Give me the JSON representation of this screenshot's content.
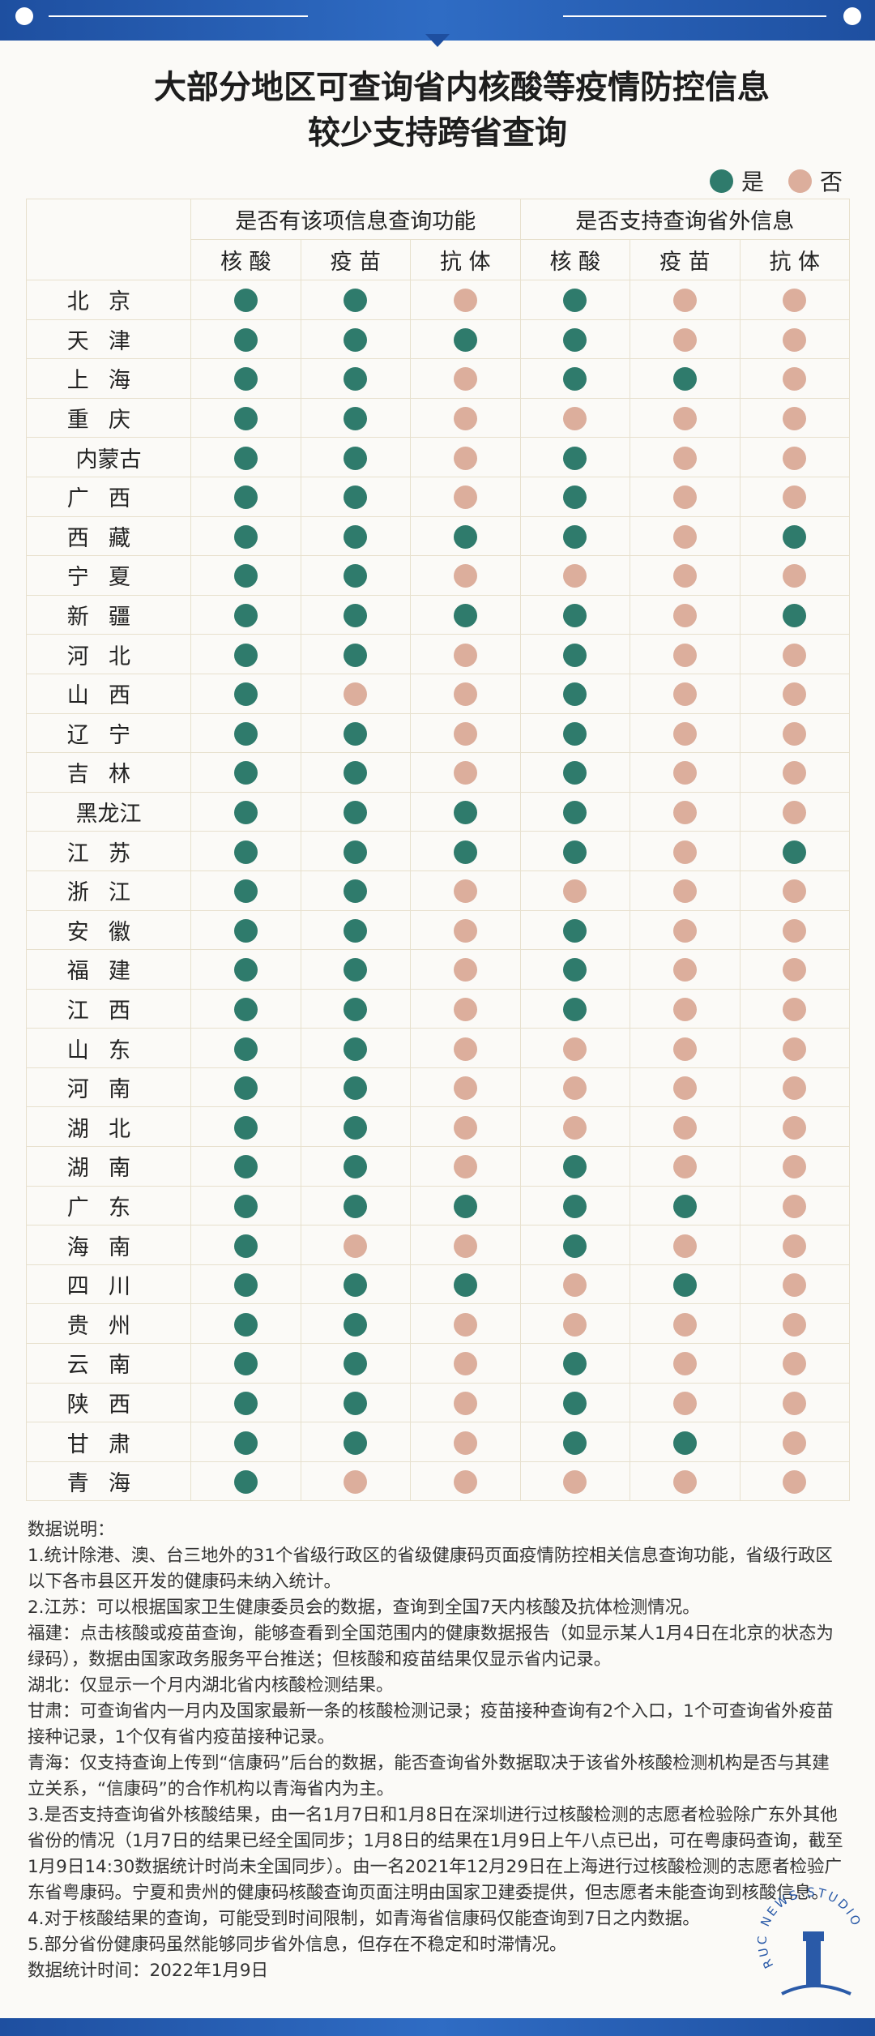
{
  "header": {
    "title_lines": [
      "大部分地区可查询省内核酸等疫情防控信息",
      "较少支持跨省查询"
    ]
  },
  "legend": {
    "yes": "是",
    "no": "否"
  },
  "table": {
    "group_headers": [
      "是否有该项信息查询功能",
      "是否支持查询省外信息"
    ],
    "sub_headers": [
      "核 酸",
      "疫 苗",
      "抗 体",
      "核 酸",
      "疫 苗",
      "抗 体"
    ],
    "rows": [
      {
        "province": "北京",
        "values": [
          true,
          true,
          false,
          true,
          false,
          false
        ]
      },
      {
        "province": "天津",
        "values": [
          true,
          true,
          true,
          true,
          false,
          false
        ]
      },
      {
        "province": "上海",
        "values": [
          true,
          true,
          false,
          true,
          true,
          false
        ]
      },
      {
        "province": "重庆",
        "values": [
          true,
          true,
          false,
          false,
          false,
          false
        ]
      },
      {
        "province": "内蒙古",
        "values": [
          true,
          true,
          false,
          true,
          false,
          false
        ]
      },
      {
        "province": "广西",
        "values": [
          true,
          true,
          false,
          true,
          false,
          false
        ]
      },
      {
        "province": "西藏",
        "values": [
          true,
          true,
          true,
          true,
          false,
          true
        ]
      },
      {
        "province": "宁夏",
        "values": [
          true,
          true,
          false,
          false,
          false,
          false
        ]
      },
      {
        "province": "新疆",
        "values": [
          true,
          true,
          true,
          true,
          false,
          true
        ]
      },
      {
        "province": "河北",
        "values": [
          true,
          true,
          false,
          true,
          false,
          false
        ]
      },
      {
        "province": "山西",
        "values": [
          true,
          false,
          false,
          true,
          false,
          false
        ]
      },
      {
        "province": "辽宁",
        "values": [
          true,
          true,
          false,
          true,
          false,
          false
        ]
      },
      {
        "province": "吉林",
        "values": [
          true,
          true,
          false,
          true,
          false,
          false
        ]
      },
      {
        "province": "黑龙江",
        "values": [
          true,
          true,
          true,
          true,
          false,
          false
        ]
      },
      {
        "province": "江苏",
        "values": [
          true,
          true,
          true,
          true,
          false,
          true
        ]
      },
      {
        "province": "浙江",
        "values": [
          true,
          true,
          false,
          false,
          false,
          false
        ]
      },
      {
        "province": "安徽",
        "values": [
          true,
          true,
          false,
          true,
          false,
          false
        ]
      },
      {
        "province": "福建",
        "values": [
          true,
          true,
          false,
          true,
          false,
          false
        ]
      },
      {
        "province": "江西",
        "values": [
          true,
          true,
          false,
          true,
          false,
          false
        ]
      },
      {
        "province": "山东",
        "values": [
          true,
          true,
          false,
          false,
          false,
          false
        ]
      },
      {
        "province": "河南",
        "values": [
          true,
          true,
          false,
          false,
          false,
          false
        ]
      },
      {
        "province": "湖北",
        "values": [
          true,
          true,
          false,
          false,
          false,
          false
        ]
      },
      {
        "province": "湖南",
        "values": [
          true,
          true,
          false,
          true,
          false,
          false
        ]
      },
      {
        "province": "广东",
        "values": [
          true,
          true,
          true,
          true,
          true,
          false
        ]
      },
      {
        "province": "海南",
        "values": [
          true,
          false,
          false,
          true,
          false,
          false
        ]
      },
      {
        "province": "四川",
        "values": [
          true,
          true,
          true,
          false,
          true,
          false
        ]
      },
      {
        "province": "贵州",
        "values": [
          true,
          true,
          false,
          false,
          false,
          false
        ]
      },
      {
        "province": "云南",
        "values": [
          true,
          true,
          false,
          true,
          false,
          false
        ]
      },
      {
        "province": "陕西",
        "values": [
          true,
          true,
          false,
          true,
          false,
          false
        ]
      },
      {
        "province": "甘肃",
        "values": [
          true,
          true,
          false,
          true,
          true,
          false
        ]
      },
      {
        "province": "青海",
        "values": [
          true,
          false,
          false,
          false,
          false,
          false
        ]
      }
    ]
  },
  "notes": {
    "title": "数据说明：",
    "paragraphs": [
      "1.统计除港、澳、台三地外的31个省级行政区的省级健康码页面疫情防控相关信息查询功能，省级行政区以下各市县区开发的健康码未纳入统计。",
      "2.江苏：可以根据国家卫生健康委员会的数据，查询到全国7天内核酸及抗体检测情况。",
      "福建：点击核酸或疫苗查询，能够查看到全国范围内的健康数据报告（如显示某人1月4日在北京的状态为绿码），数据由国家政务服务平台推送；但核酸和疫苗结果仅显示省内记录。",
      "湖北：仅显示一个月内湖北省内核酸检测结果。",
      "甘肃：可查询省内一月内及国家最新一条的核酸检测记录；疫苗接种查询有2个入口，1个可查询省外疫苗接种记录，1个仅有省内疫苗接种记录。",
      "青海：仅支持查询上传到“信康码”后台的数据，能否查询省外数据取决于该省外核酸检测机构是否与其建立关系，“信康码”的合作机构以青海省内为主。",
      "3.是否支持查询省外核酸结果，由一名1月7日和1月8日在深圳进行过核酸检测的志愿者检验除广东外其他省份的情况（1月7日的结果已经全国同步；1月8日的结果在1月9日上午八点已出，可在粤康码查询，截至1月9日14:30数据统计时尚未全国同步）。由一名2021年12月29日在上海进行过核酸检测的志愿者检验广东省粤康码。宁夏和贵州的健康码核酸查询页面注明由国家卫建委提供，但志愿者未能查询到核酸信息。",
      "4.对于核酸结果的查询，可能受到时间限制，如青海省信康码仅能查询到7日之内数据。",
      "5.部分省份健康码虽然能够同步省外信息，但存在不稳定和时滞情况。",
      "数据统计时间：2022年1月9日"
    ]
  },
  "logo": {
    "text": "RUC NEWS STUDIO"
  }
}
